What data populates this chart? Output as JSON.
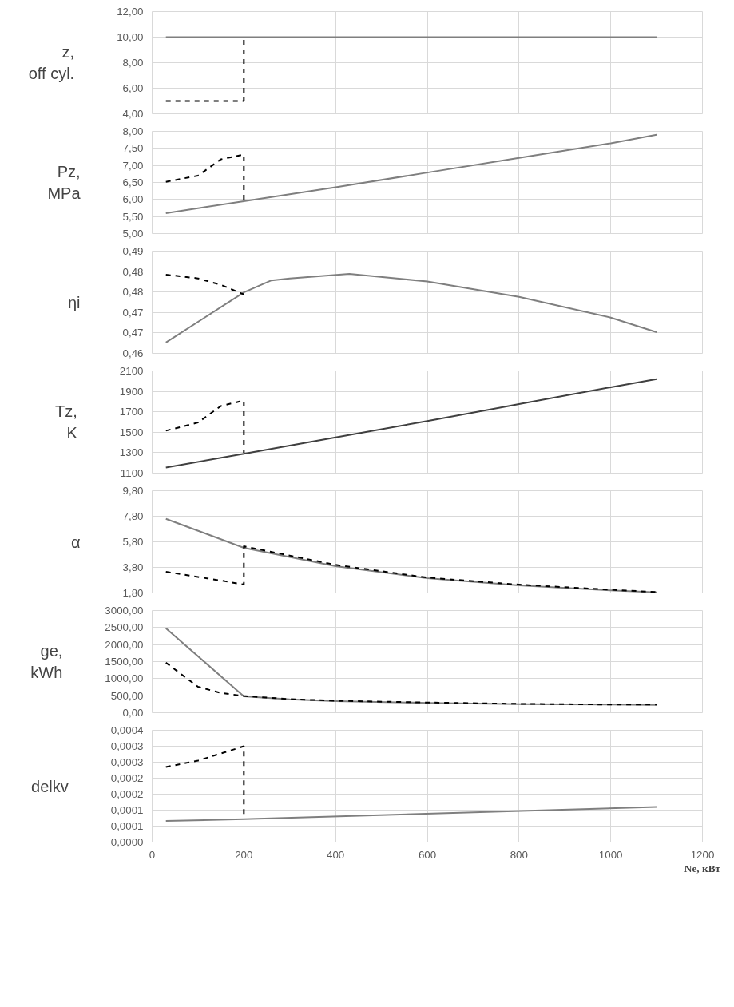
{
  "chart_data": [
    {
      "type": "line",
      "ylabel": "z,\noff cyl.",
      "xlim": [
        0,
        1200
      ],
      "xticks": [
        0,
        200,
        400,
        600,
        800,
        1000,
        1200
      ],
      "ylim": [
        4,
        12
      ],
      "yticks": [
        {
          "value": 4,
          "label": "4,00"
        },
        {
          "value": 6,
          "label": "6,00"
        },
        {
          "value": 8,
          "label": "8,00"
        },
        {
          "value": 10,
          "label": "10,00"
        },
        {
          "value": 12,
          "label": "12,00"
        }
      ],
      "grid": true,
      "tick_labels": "y",
      "series": [
        {
          "color": "#7f7f7f",
          "line_style": "solid",
          "x": [
            30,
            1100
          ],
          "values": [
            10,
            10
          ]
        },
        {
          "color": "#000000",
          "line_style": "dashed",
          "x": [
            30,
            200,
            200
          ],
          "values": [
            5,
            5,
            10
          ]
        }
      ]
    },
    {
      "type": "line",
      "ylabel": "Pz,\nMPa",
      "xlim": [
        0,
        1200
      ],
      "xticks": [
        0,
        200,
        400,
        600,
        800,
        1000,
        1200
      ],
      "ylim": [
        5,
        8
      ],
      "yticks": [
        {
          "value": 5,
          "label": "5,00"
        },
        {
          "value": 5.5,
          "label": "5,50"
        },
        {
          "value": 6,
          "label": "6,00"
        },
        {
          "value": 6.5,
          "label": "6,50"
        },
        {
          "value": 7,
          "label": "7,00"
        },
        {
          "value": 7.5,
          "label": "7,50"
        },
        {
          "value": 8,
          "label": "8,00"
        }
      ],
      "grid": true,
      "tick_labels": "y",
      "series": [
        {
          "color": "#7f7f7f",
          "line_style": "solid",
          "x": [
            30,
            200,
            400,
            600,
            800,
            1000,
            1100
          ],
          "values": [
            5.6,
            5.95,
            6.36,
            6.79,
            7.22,
            7.65,
            7.9
          ]
        },
        {
          "color": "#000000",
          "line_style": "dashed",
          "x": [
            30,
            100,
            150,
            200,
            200
          ],
          "values": [
            6.52,
            6.7,
            7.18,
            7.32,
            5.95
          ]
        }
      ]
    },
    {
      "type": "line",
      "ylabel": "ηi",
      "xlim": [
        0,
        1200
      ],
      "xticks": [
        0,
        200,
        400,
        600,
        800,
        1000,
        1200
      ],
      "ylim": [
        0.46,
        0.49
      ],
      "yticks": [
        {
          "value": 0.46,
          "label": "0,46"
        },
        {
          "value": 0.466,
          "label": "0,47"
        },
        {
          "value": 0.472,
          "label": "0,47"
        },
        {
          "value": 0.478,
          "label": "0,48"
        },
        {
          "value": 0.484,
          "label": "0,48"
        },
        {
          "value": 0.49,
          "label": "0,49"
        }
      ],
      "grid": true,
      "tick_labels": "y",
      "series": [
        {
          "color": "#7f7f7f",
          "line_style": "solid",
          "x": [
            30,
            200,
            260,
            300,
            430,
            600,
            800,
            1000,
            1100
          ],
          "values": [
            0.4632,
            0.4779,
            0.4814,
            0.482,
            0.4833,
            0.4811,
            0.4766,
            0.4705,
            0.4662
          ]
        },
        {
          "color": "#000000",
          "line_style": "dashed",
          "x": [
            30,
            100,
            150,
            200
          ],
          "values": [
            0.4831,
            0.482,
            0.4801,
            0.4773
          ]
        }
      ]
    },
    {
      "type": "line",
      "ylabel": "Tz,\nK",
      "xlim": [
        0,
        1200
      ],
      "xticks": [
        0,
        200,
        400,
        600,
        800,
        1000,
        1200
      ],
      "ylim": [
        1100,
        2100
      ],
      "yticks": [
        1100,
        1300,
        1500,
        1700,
        1900,
        2100
      ],
      "grid": true,
      "tick_labels": "y",
      "series": [
        {
          "color": "#404040",
          "line_style": "solid",
          "x": [
            30,
            200,
            400,
            600,
            800,
            1000,
            1100
          ],
          "values": [
            1155,
            1290,
            1450,
            1610,
            1775,
            1940,
            2020
          ]
        },
        {
          "color": "#000000",
          "line_style": "dashed",
          "x": [
            30,
            100,
            150,
            200,
            200
          ],
          "values": [
            1515,
            1595,
            1757,
            1811,
            1300
          ]
        }
      ]
    },
    {
      "type": "line",
      "ylabel": "α",
      "xlim": [
        0,
        1200
      ],
      "xticks": [
        0,
        200,
        400,
        600,
        800,
        1000,
        1200
      ],
      "ylim": [
        1.8,
        9.8
      ],
      "yticks": [
        {
          "value": 1.8,
          "label": "1,80"
        },
        {
          "value": 3.8,
          "label": "3,80"
        },
        {
          "value": 5.8,
          "label": "5,80"
        },
        {
          "value": 7.8,
          "label": "7,80"
        },
        {
          "value": 9.8,
          "label": "9,80"
        }
      ],
      "grid": true,
      "tick_labels": "y",
      "series": [
        {
          "color": "#7f7f7f",
          "line_style": "solid",
          "x": [
            30,
            200,
            400,
            600,
            800,
            1000,
            1100
          ],
          "values": [
            7.6,
            5.33,
            3.9,
            2.95,
            2.39,
            2.0,
            1.85
          ]
        },
        {
          "color": "#000000",
          "line_style": "dashed",
          "x": [
            30,
            100,
            150,
            200,
            200,
            400,
            600,
            800,
            1000,
            1100
          ],
          "values": [
            3.46,
            3.05,
            2.77,
            2.46,
            5.45,
            4.0,
            3.0,
            2.45,
            2.05,
            1.87
          ]
        }
      ]
    },
    {
      "type": "line",
      "ylabel": "ge,\nkWh",
      "xlim": [
        0,
        1200
      ],
      "xticks": [
        0,
        200,
        400,
        600,
        800,
        1000,
        1200
      ],
      "ylim": [
        0,
        3000
      ],
      "yticks": [
        {
          "value": 0,
          "label": "0,00"
        },
        {
          "value": 500,
          "label": "500,00"
        },
        {
          "value": 1000,
          "label": "1000,00"
        },
        {
          "value": 1500,
          "label": "1500,00"
        },
        {
          "value": 2000,
          "label": "2000,00"
        },
        {
          "value": 2500,
          "label": "2500,00"
        },
        {
          "value": 3000,
          "label": "3000,00"
        }
      ],
      "grid": true,
      "tick_labels": "y",
      "series": [
        {
          "color": "#7f7f7f",
          "line_style": "solid",
          "x": [
            30,
            200,
            300,
            400,
            600,
            800,
            1000,
            1100
          ],
          "values": [
            2480,
            480,
            390,
            340,
            290,
            250,
            240,
            230
          ]
        },
        {
          "color": "#000000",
          "line_style": "dashed",
          "x": [
            30,
            100,
            150,
            200,
            300,
            400,
            600,
            800,
            1000,
            1100
          ],
          "values": [
            1470,
            760,
            580,
            490,
            400,
            350,
            300,
            260,
            240,
            240
          ]
        }
      ]
    },
    {
      "type": "line",
      "ylabel": "delkv",
      "xlabel": "Ne, кВт",
      "xlim": [
        0,
        1200
      ],
      "xticks": [
        0,
        200,
        400,
        600,
        800,
        1000,
        1200
      ],
      "ylim": [
        0,
        0.00035
      ],
      "yticks": [
        {
          "value": 0,
          "label": "0,0000"
        },
        {
          "value": 5e-05,
          "label": "0,0001"
        },
        {
          "value": 0.0001,
          "label": "0,0001"
        },
        {
          "value": 0.00015,
          "label": "0,0002"
        },
        {
          "value": 0.0002,
          "label": "0,0002"
        },
        {
          "value": 0.00025,
          "label": "0,0003"
        },
        {
          "value": 0.0003,
          "label": "0,0003"
        },
        {
          "value": 0.00035,
          "label": "0,0004"
        }
      ],
      "grid": true,
      "series": [
        {
          "color": "#7f7f7f",
          "line_style": "solid",
          "x": [
            30,
            200,
            1100
          ],
          "values": [
            6.6e-05,
            7.2e-05,
            0.00011
          ]
        },
        {
          "color": "#000000",
          "line_style": "dashed",
          "x": [
            30,
            100,
            200,
            200
          ],
          "values": [
            0.000235,
            0.000255,
            0.0003,
            7.2e-05
          ]
        }
      ]
    }
  ]
}
